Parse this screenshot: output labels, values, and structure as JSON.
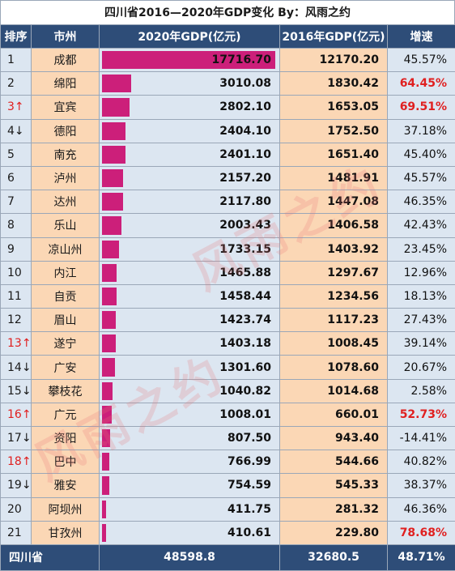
{
  "title": "四川省2016—2020年GDP变化    By：风雨之约",
  "watermark": "风雨之约",
  "headers": [
    "排序",
    "市州",
    "2020年GDP(亿元)",
    "2016年GDP(亿元)",
    "增速"
  ],
  "rows": [
    {
      "rank": "1",
      "rank_color": "normal",
      "city": "成都",
      "gdp2020": "17716.70",
      "gdp2020_value": 17716.7,
      "gdp2016": "12170.20",
      "rate": "45.57%",
      "rate_highlight": false
    },
    {
      "rank": "2",
      "rank_color": "normal",
      "city": "绵阳",
      "gdp2020": "3010.08",
      "gdp2020_value": 3010.08,
      "gdp2016": "1830.42",
      "rate": "64.45%",
      "rate_highlight": true
    },
    {
      "rank": "3↑",
      "rank_color": "red",
      "city": "宜宾",
      "gdp2020": "2802.10",
      "gdp2020_value": 2802.1,
      "gdp2016": "1653.05",
      "rate": "69.51%",
      "rate_highlight": true
    },
    {
      "rank": "4↓",
      "rank_color": "normal",
      "city": "德阳",
      "gdp2020": "2404.10",
      "gdp2020_value": 2404.1,
      "gdp2016": "1752.50",
      "rate": "37.18%",
      "rate_highlight": false
    },
    {
      "rank": "5",
      "rank_color": "normal",
      "city": "南充",
      "gdp2020": "2401.10",
      "gdp2020_value": 2401.1,
      "gdp2016": "1651.40",
      "rate": "45.40%",
      "rate_highlight": false
    },
    {
      "rank": "6",
      "rank_color": "normal",
      "city": "泸州",
      "gdp2020": "2157.20",
      "gdp2020_value": 2157.2,
      "gdp2016": "1481.91",
      "rate": "45.57%",
      "rate_highlight": false
    },
    {
      "rank": "7",
      "rank_color": "normal",
      "city": "达州",
      "gdp2020": "2117.80",
      "gdp2020_value": 2117.8,
      "gdp2016": "1447.08",
      "rate": "46.35%",
      "rate_highlight": false
    },
    {
      "rank": "8",
      "rank_color": "normal",
      "city": "乐山",
      "gdp2020": "2003.43",
      "gdp2020_value": 2003.43,
      "gdp2016": "1406.58",
      "rate": "42.43%",
      "rate_highlight": false
    },
    {
      "rank": "9",
      "rank_color": "normal",
      "city": "凉山州",
      "gdp2020": "1733.15",
      "gdp2020_value": 1733.15,
      "gdp2016": "1403.92",
      "rate": "23.45%",
      "rate_highlight": false
    },
    {
      "rank": "10",
      "rank_color": "normal",
      "city": "内江",
      "gdp2020": "1465.88",
      "gdp2020_value": 1465.88,
      "gdp2016": "1297.67",
      "rate": "12.96%",
      "rate_highlight": false
    },
    {
      "rank": "11",
      "rank_color": "normal",
      "city": "自贡",
      "gdp2020": "1458.44",
      "gdp2020_value": 1458.44,
      "gdp2016": "1234.56",
      "rate": "18.13%",
      "rate_highlight": false
    },
    {
      "rank": "12",
      "rank_color": "normal",
      "city": "眉山",
      "gdp2020": "1423.74",
      "gdp2020_value": 1423.74,
      "gdp2016": "1117.23",
      "rate": "27.43%",
      "rate_highlight": false
    },
    {
      "rank": "13↑",
      "rank_color": "red",
      "city": "遂宁",
      "gdp2020": "1403.18",
      "gdp2020_value": 1403.18,
      "gdp2016": "1008.45",
      "rate": "39.14%",
      "rate_highlight": false
    },
    {
      "rank": "14↓",
      "rank_color": "normal",
      "city": "广安",
      "gdp2020": "1301.60",
      "gdp2020_value": 1301.6,
      "gdp2016": "1078.60",
      "rate": "20.67%",
      "rate_highlight": false
    },
    {
      "rank": "15↓",
      "rank_color": "normal",
      "city": "攀枝花",
      "gdp2020": "1040.82",
      "gdp2020_value": 1040.82,
      "gdp2016": "1014.68",
      "rate": "2.58%",
      "rate_highlight": false
    },
    {
      "rank": "16↑",
      "rank_color": "red",
      "city": "广元",
      "gdp2020": "1008.01",
      "gdp2020_value": 1008.01,
      "gdp2016": "660.01",
      "rate": "52.73%",
      "rate_highlight": true
    },
    {
      "rank": "17↓",
      "rank_color": "normal",
      "city": "资阳",
      "gdp2020": "807.50",
      "gdp2020_value": 807.5,
      "gdp2016": "943.40",
      "rate": "-14.41%",
      "rate_highlight": false
    },
    {
      "rank": "18↑",
      "rank_color": "red",
      "city": "巴中",
      "gdp2020": "766.99",
      "gdp2020_value": 766.99,
      "gdp2016": "544.66",
      "rate": "40.82%",
      "rate_highlight": false
    },
    {
      "rank": "19↓",
      "rank_color": "normal",
      "city": "雅安",
      "gdp2020": "754.59",
      "gdp2020_value": 754.59,
      "gdp2016": "545.33",
      "rate": "38.37%",
      "rate_highlight": false
    },
    {
      "rank": "20",
      "rank_color": "normal",
      "city": "阿坝州",
      "gdp2020": "411.75",
      "gdp2020_value": 411.75,
      "gdp2016": "281.32",
      "rate": "46.36%",
      "rate_highlight": false
    },
    {
      "rank": "21",
      "rank_color": "normal",
      "city": "甘孜州",
      "gdp2020": "410.61",
      "gdp2020_value": 410.61,
      "gdp2016": "229.80",
      "rate": "78.68%",
      "rate_highlight": true
    }
  ],
  "bar_max": 17716.7,
  "footer": {
    "label": "四川省",
    "gdp2020": "48598.8",
    "gdp2016": "32680.5",
    "rate": "48.71%"
  },
  "colors": {
    "header_bg": "#2e4d78",
    "bar": "#cc1f7a",
    "highlight_red": "#e02020",
    "peach": "#fbd7b5",
    "light_blue": "#dce6f1"
  }
}
